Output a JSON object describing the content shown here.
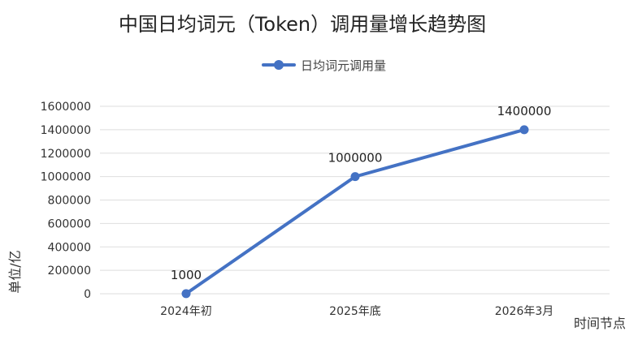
{
  "chart_data": {
    "type": "line",
    "title": "中国日均词元（Token）调用量增长趋势图",
    "categories": [
      "2024年初",
      "2025年底",
      "2026年3月"
    ],
    "series": [
      {
        "name": "日均词元调用量",
        "values": [
          1000,
          1000000,
          1400000
        ],
        "color": "#4472C4"
      }
    ],
    "data_labels": [
      "1000",
      "1000000",
      "1400000"
    ],
    "xlabel": "时间节点",
    "ylabel": "单位/亿",
    "ylim": [
      0,
      1600000
    ],
    "yticks": [
      0,
      200000,
      400000,
      600000,
      800000,
      1000000,
      1200000,
      1400000,
      1600000
    ],
    "ytick_labels": [
      "0",
      "200000",
      "400000",
      "600000",
      "800000",
      "1000000",
      "1200000",
      "1400000",
      "1600000"
    ],
    "grid": true,
    "legend_position": "top-center"
  }
}
